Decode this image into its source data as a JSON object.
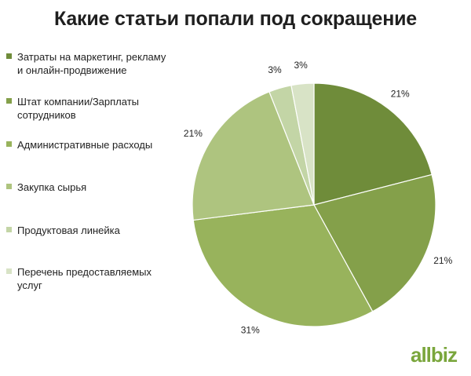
{
  "chart_data": {
    "type": "pie",
    "title": "Какие статьи попали под сокращение",
    "slices": [
      {
        "label": "Затраты на маркетинг, рекламу и онлайн-продвижение",
        "value": 21,
        "value_label": "21%",
        "color": "#6f8c3a"
      },
      {
        "label": "Штат компании/Зарплаты сотрудников",
        "value": 21,
        "value_label": "21%",
        "color": "#84a04a"
      },
      {
        "label": "Административные расходы",
        "value": 31,
        "value_label": "31%",
        "color": "#98b35c"
      },
      {
        "label": "Закупка сырья",
        "value": 21,
        "value_label": "21%",
        "color": "#aec47f"
      },
      {
        "label": "Продуктовая линейка",
        "value": 3,
        "value_label": "3%",
        "color": "#c3d5a6"
      },
      {
        "label": "Перечень предоставляемых услуг",
        "value": 3,
        "value_label": "3%",
        "color": "#d8e3c6"
      }
    ],
    "legend_position": "left"
  },
  "brand": {
    "text": "allbiz"
  }
}
